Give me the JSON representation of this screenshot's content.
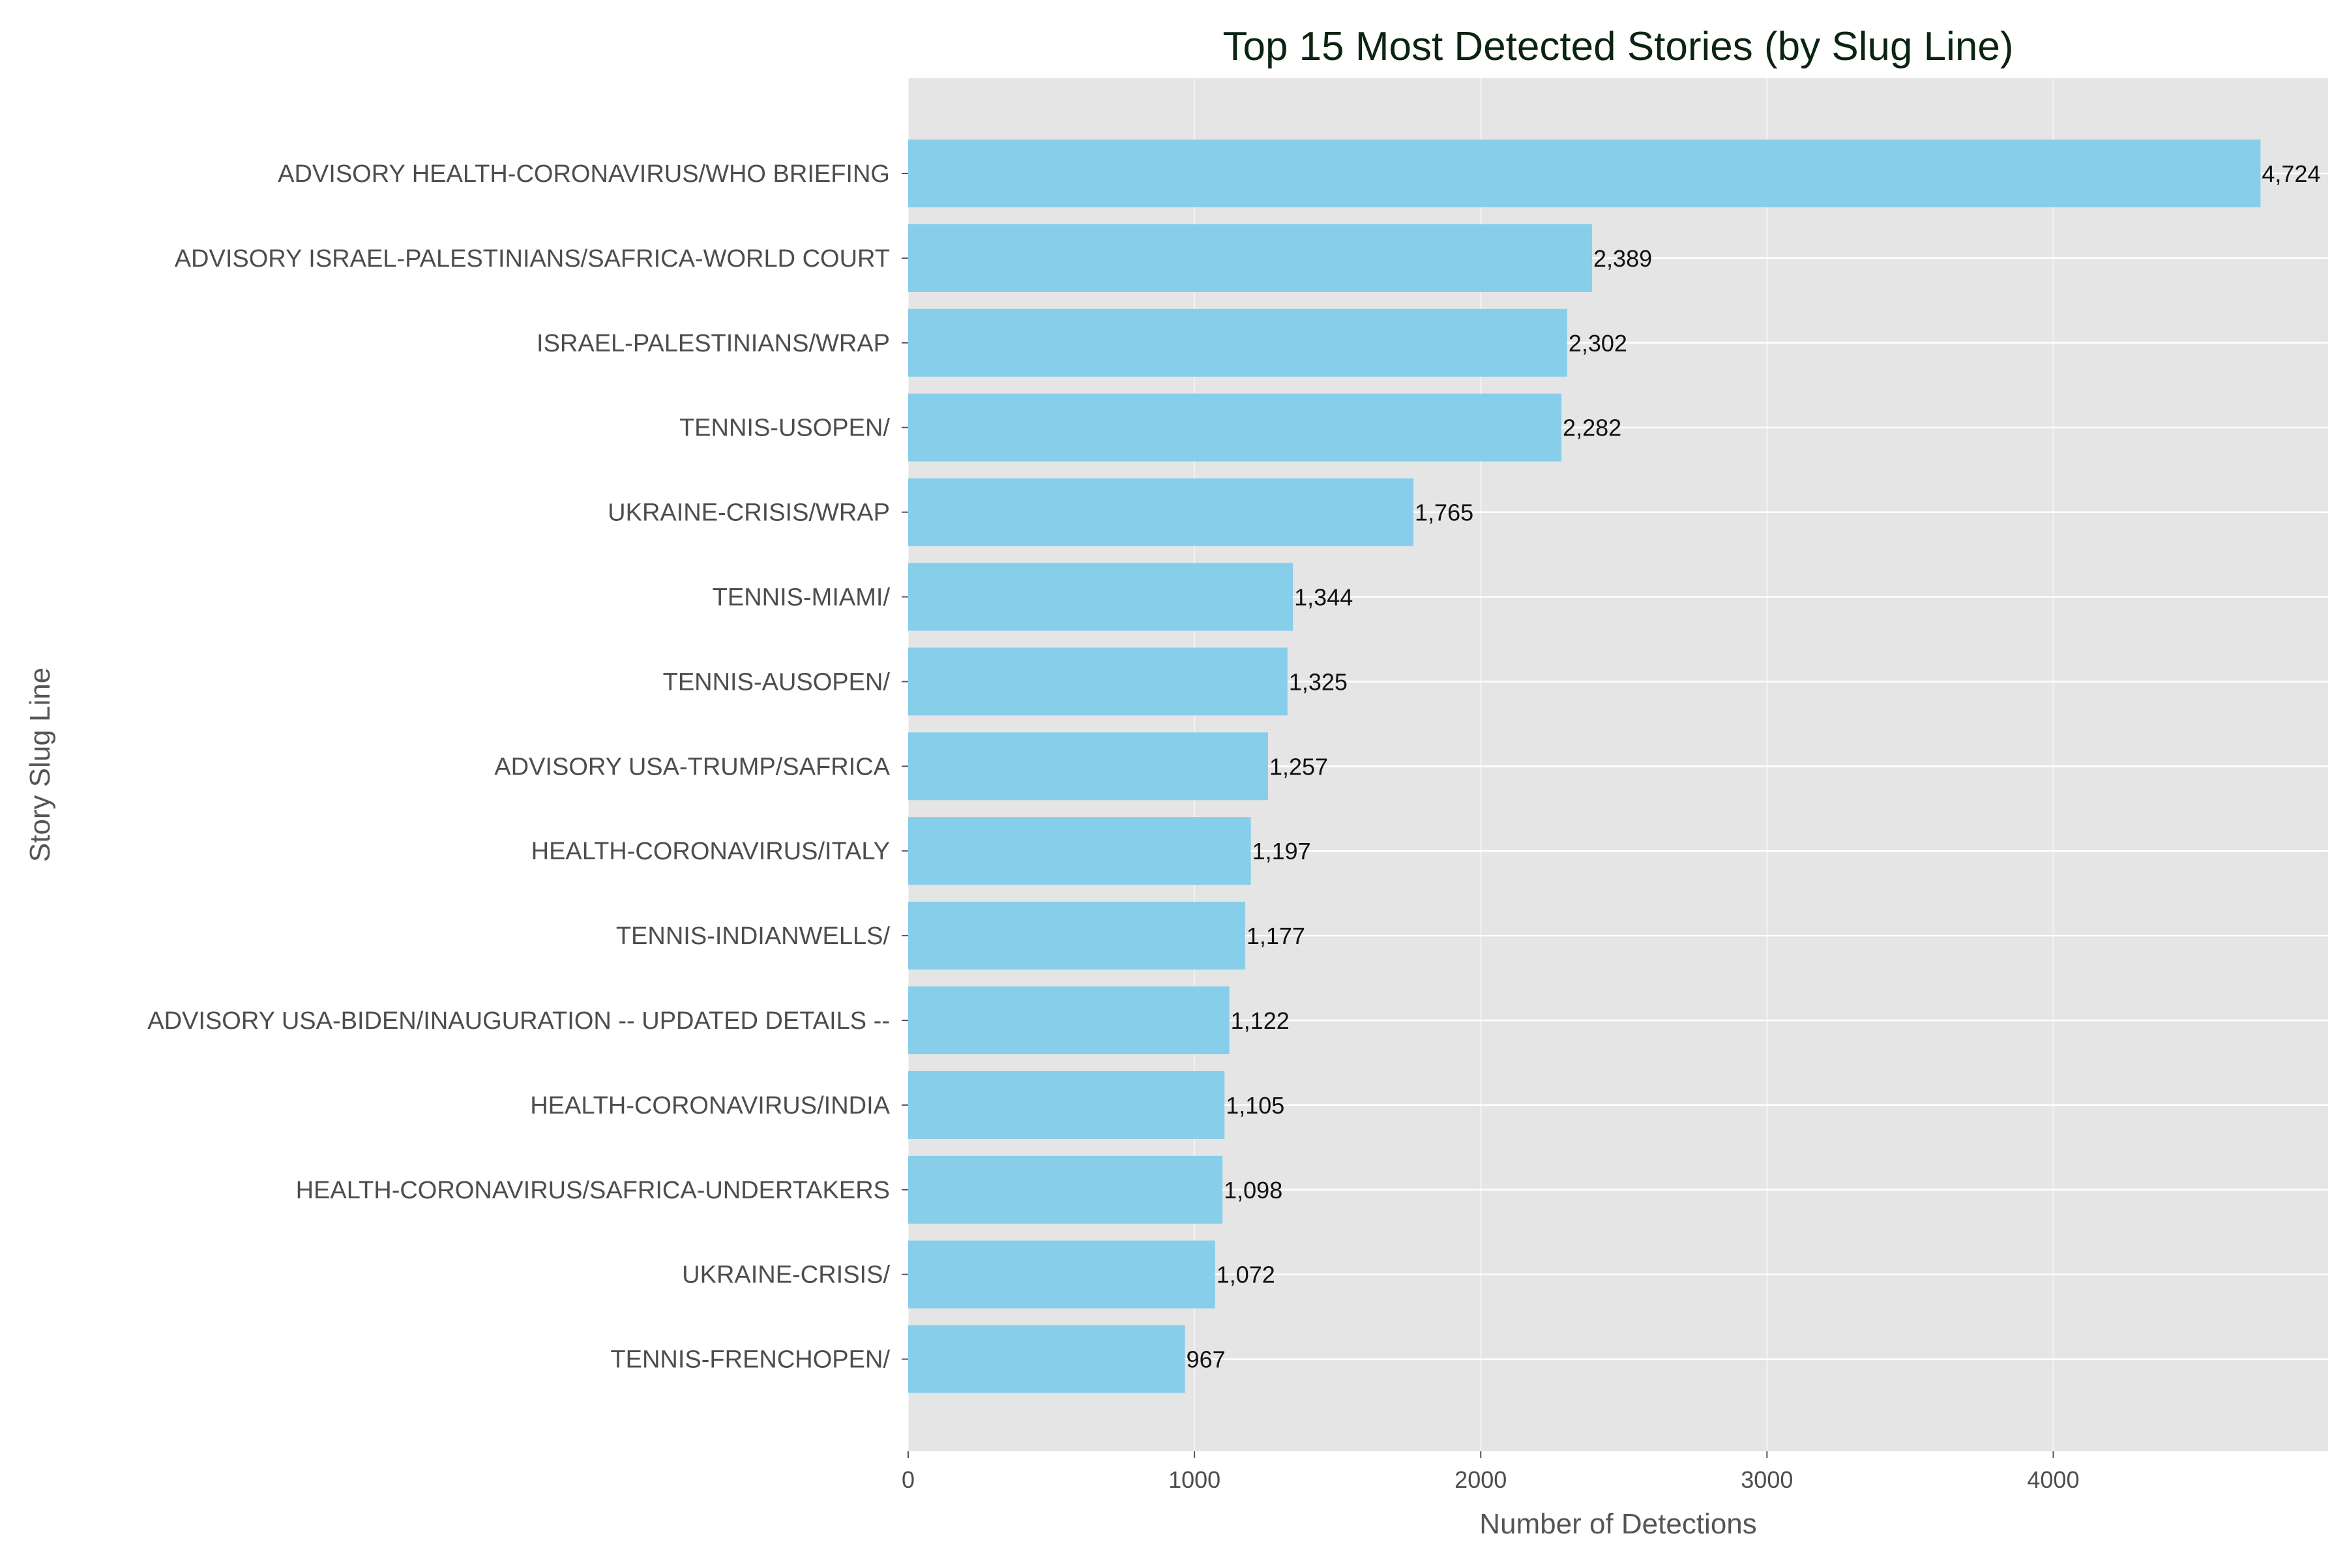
{
  "chart_data": {
    "type": "bar",
    "orientation": "horizontal",
    "title": "Top 15 Most Detected Stories (by Slug Line)",
    "xlabel": "Number of Detections",
    "ylabel": "Story Slug Line",
    "xlim": [
      0,
      4960
    ],
    "xticks": [
      "0",
      "1000",
      "2000",
      "3000",
      "4000"
    ],
    "grid": true,
    "bar_color": "#87ceeb",
    "background_color": "#e5e5e5",
    "categories": [
      "ADVISORY HEALTH-CORONAVIRUS/WHO BRIEFING",
      "ADVISORY ISRAEL-PALESTINIANS/SAFRICA-WORLD COURT",
      "ISRAEL-PALESTINIANS/WRAP",
      "TENNIS-USOPEN/",
      "UKRAINE-CRISIS/WRAP",
      "TENNIS-MIAMI/",
      "TENNIS-AUSOPEN/",
      "ADVISORY USA-TRUMP/SAFRICA",
      "HEALTH-CORONAVIRUS/ITALY",
      "TENNIS-INDIANWELLS/",
      "ADVISORY USA-BIDEN/INAUGURATION -- UPDATED DETAILS --",
      "HEALTH-CORONAVIRUS/INDIA",
      "HEALTH-CORONAVIRUS/SAFRICA-UNDERTAKERS",
      "UKRAINE-CRISIS/",
      "TENNIS-FRENCHOPEN/"
    ],
    "values": [
      4724,
      2389,
      2302,
      2282,
      1765,
      1344,
      1325,
      1257,
      1197,
      1177,
      1122,
      1105,
      1098,
      1072,
      967
    ],
    "value_labels": [
      "4,724",
      "2,389",
      "2,302",
      "2,282",
      "1,765",
      "1,344",
      "1,325",
      "1,257",
      "1,197",
      "1,177",
      "1,122",
      "1,105",
      "1,098",
      "1,072",
      "967"
    ]
  }
}
